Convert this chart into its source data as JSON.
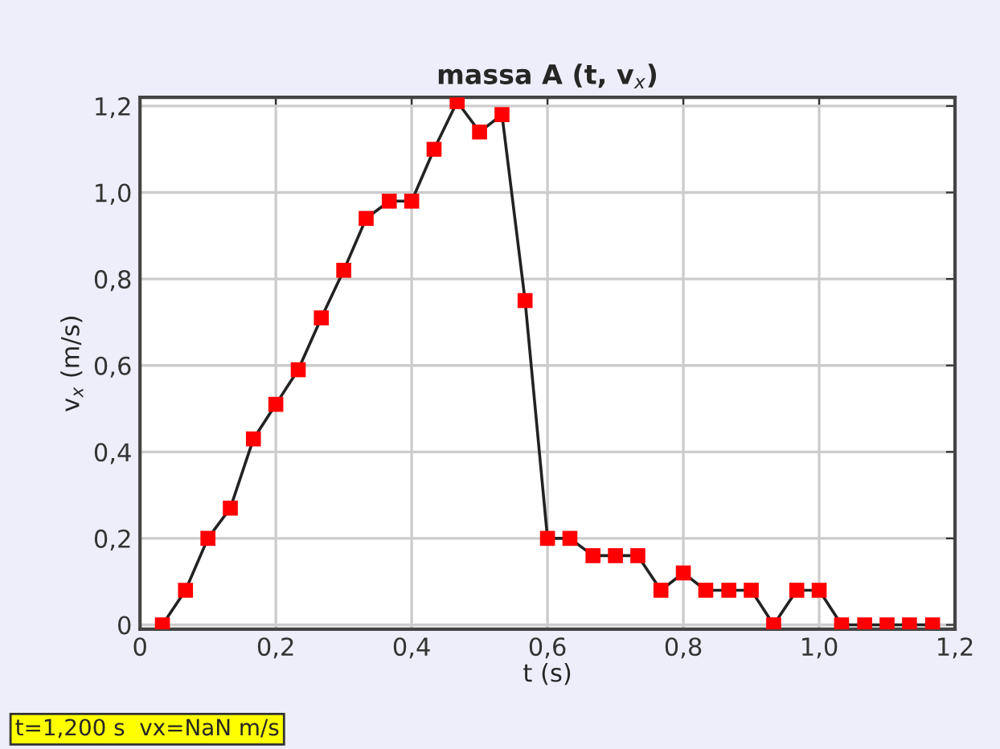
{
  "chart_data": {
    "type": "line",
    "title": "massa A (t, v$_{x}$)",
    "xlabel": "t (s)",
    "ylabel": "v$_{x}$ (m/s)",
    "x": [
      0.033,
      0.067,
      0.1,
      0.133,
      0.167,
      0.2,
      0.233,
      0.267,
      0.3,
      0.333,
      0.367,
      0.4,
      0.433,
      0.467,
      0.5,
      0.533,
      0.567,
      0.6,
      0.633,
      0.667,
      0.7,
      0.733,
      0.767,
      0.8,
      0.833,
      0.867,
      0.9,
      0.933,
      0.967,
      1.0,
      1.033,
      1.067,
      1.1,
      1.133,
      1.167
    ],
    "series": [
      {
        "color": "#ff0000",
        "values": [
          0.0,
          0.08,
          0.2,
          0.27,
          0.43,
          0.51,
          0.59,
          0.71,
          0.82,
          0.94,
          0.98,
          0.98,
          1.1,
          1.21,
          1.14,
          1.18,
          0.75,
          0.2,
          0.2,
          0.16,
          0.16,
          0.16,
          0.08,
          0.12,
          0.08,
          0.08,
          0.08,
          0.0,
          0.08,
          0.08,
          0.0,
          0.0,
          0.0,
          0.0,
          0.0
        ]
      }
    ],
    "marker": "square",
    "line_style": "solid",
    "grid": true,
    "xlim": [
      0,
      1.2
    ],
    "ylim": [
      -0.01,
      1.22
    ],
    "xticks": [
      0,
      {
        "value": 0.2,
        "label": "0,2"
      },
      {
        "value": 0.4,
        "label": "0,4"
      },
      {
        "value": 0.6,
        "label": "0,6"
      },
      {
        "value": 0.8,
        "label": "0,8"
      },
      {
        "value": 1.0,
        "label": "1,0"
      },
      {
        "value": 1.2,
        "label": "1,2"
      }
    ],
    "yticks": [
      0,
      {
        "value": 0.2,
        "label": "0,2"
      },
      {
        "value": 0.4,
        "label": "0,4"
      },
      {
        "value": 0.6,
        "label": "0,6"
      },
      {
        "value": 0.8,
        "label": "0,8"
      },
      {
        "value": 1.0,
        "label": "1,0"
      },
      {
        "value": 1.2,
        "label": "1,2"
      }
    ],
    "annotations": [
      "t=1,200 s  vx=NaN m/s"
    ]
  }
}
